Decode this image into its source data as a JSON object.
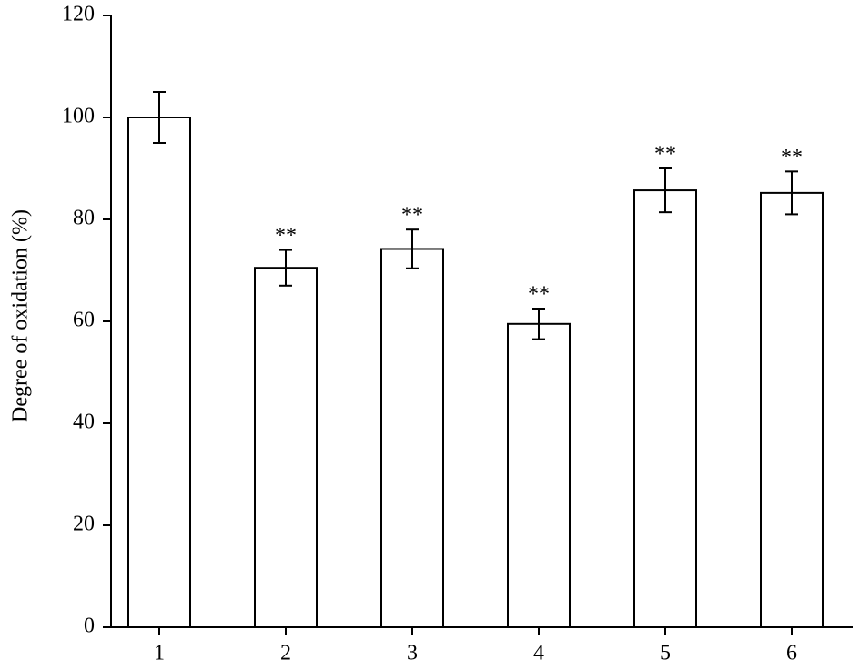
{
  "chart_data": {
    "type": "bar",
    "y_label": "Degree of oxidation (%)",
    "categories": [
      "1",
      "2",
      "3",
      "4",
      "5",
      "6"
    ],
    "values": [
      100,
      70.5,
      74.2,
      59.5,
      85.7,
      85.2
    ],
    "errors": [
      5,
      3.5,
      3.8,
      3,
      4.3,
      4.2
    ],
    "annotations": [
      null,
      "**",
      "**",
      "**",
      "**",
      "**"
    ],
    "color": "#ffffff",
    "ylim": [
      0,
      120
    ],
    "yticks": [
      0,
      20,
      40,
      60,
      80,
      100,
      120
    ],
    "grid": false
  }
}
